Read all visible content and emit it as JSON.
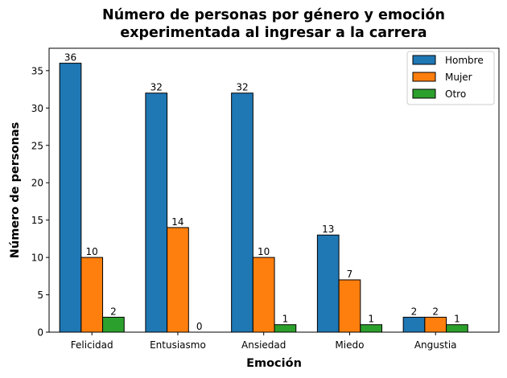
{
  "chart_data": {
    "type": "bar",
    "title_lines": [
      "Número de personas por género y emoción",
      "experimentada al ingresar a la carrera"
    ],
    "xlabel": "Emoción",
    "ylabel": "Número de personas",
    "categories": [
      "Felicidad",
      "Entusiasmo",
      "Ansiedad",
      "Miedo",
      "Angustia"
    ],
    "series": [
      {
        "name": "Hombre",
        "color": "#1f77b4",
        "values": [
          36,
          32,
          32,
          13,
          2
        ]
      },
      {
        "name": "Mujer",
        "color": "#ff7f0e",
        "values": [
          10,
          14,
          10,
          7,
          2
        ]
      },
      {
        "name": "Otro",
        "color": "#2ca02c",
        "values": [
          2,
          0,
          1,
          1,
          1
        ]
      }
    ],
    "ylim": [
      0,
      38
    ],
    "yticks": [
      0,
      5,
      10,
      15,
      20,
      25,
      30,
      35
    ],
    "legend_position": "top-right",
    "grid": false
  }
}
